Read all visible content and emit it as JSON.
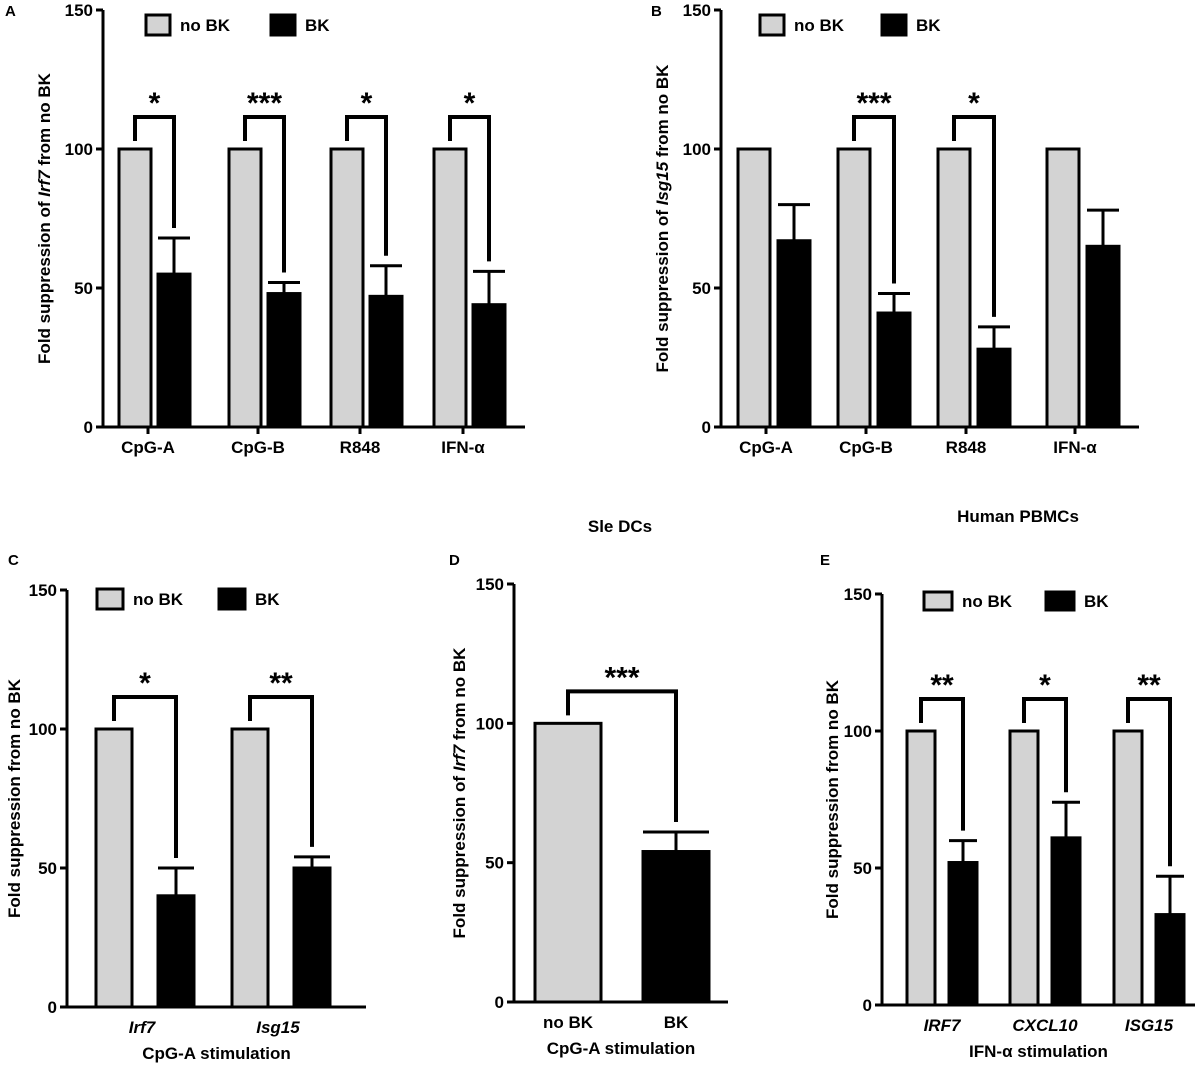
{
  "colors": {
    "nobk": "#d3d3d3",
    "bk": "#000000",
    "axis": "#000000"
  },
  "chart_data": [
    {
      "panel": "A",
      "type": "bar",
      "title": "",
      "ylabel_parts": [
        {
          "t": "Fold suppression of ",
          "i": false
        },
        {
          "t": "Irf7",
          "i": true
        },
        {
          "t": " from no BK",
          "i": false
        }
      ],
      "xlabel": "",
      "categories": [
        "CpG-A",
        "CpG-B",
        "R848",
        "IFN-α"
      ],
      "categories_italic": false,
      "series": [
        {
          "name": "no BK",
          "values": [
            100,
            100,
            100,
            100
          ],
          "errors": [
            0,
            0,
            0,
            0
          ]
        },
        {
          "name": "BK",
          "values": [
            55,
            48,
            47,
            44
          ],
          "errors": [
            13,
            4,
            11,
            12
          ]
        }
      ],
      "significance": [
        "*",
        "***",
        "*",
        "*"
      ],
      "ylim": [
        0,
        150
      ],
      "yticks": [
        0,
        50,
        100,
        150
      ],
      "legend": [
        "no BK",
        "BK"
      ]
    },
    {
      "panel": "B",
      "type": "bar",
      "title": "",
      "ylabel_parts": [
        {
          "t": "Fold suppression of ",
          "i": false
        },
        {
          "t": "Isg15",
          "i": true
        },
        {
          "t": " from no BK",
          "i": false
        }
      ],
      "xlabel": "",
      "categories": [
        "CpG-A",
        "CpG-B",
        "R848",
        "IFN-α"
      ],
      "categories_italic": false,
      "series": [
        {
          "name": "no BK",
          "values": [
            100,
            100,
            100,
            100
          ],
          "errors": [
            0,
            0,
            0,
            0
          ]
        },
        {
          "name": "BK",
          "values": [
            67,
            41,
            28,
            65
          ],
          "errors": [
            13,
            7,
            8,
            13
          ]
        }
      ],
      "significance": [
        "",
        "***",
        "*",
        ""
      ],
      "ylim": [
        0,
        150
      ],
      "yticks": [
        0,
        50,
        100,
        150
      ],
      "legend": [
        "no BK",
        "BK"
      ]
    },
    {
      "panel": "C",
      "type": "bar",
      "title": "",
      "ylabel_parts": [
        {
          "t": "Fold suppression from no BK",
          "i": false
        }
      ],
      "xlabel": "CpG-A stimulation",
      "categories": [
        "Irf7",
        "Isg15"
      ],
      "categories_italic": true,
      "series": [
        {
          "name": "no BK",
          "values": [
            100,
            100
          ],
          "errors": [
            0,
            0
          ]
        },
        {
          "name": "BK",
          "values": [
            40,
            50
          ],
          "errors": [
            10,
            4
          ]
        }
      ],
      "significance": [
        "*",
        "**"
      ],
      "ylim": [
        0,
        150
      ],
      "yticks": [
        0,
        50,
        100,
        150
      ],
      "legend": [
        "no BK",
        "BK"
      ]
    },
    {
      "panel": "D",
      "type": "bar",
      "title": "Sle DCs",
      "ylabel_parts": [
        {
          "t": "Fold suppression of ",
          "i": false
        },
        {
          "t": "Irf7",
          "i": true
        },
        {
          "t": " from no BK",
          "i": false
        }
      ],
      "xlabel": "CpG-A stimulation",
      "categories": [
        "no BK",
        "BK"
      ],
      "categories_italic": false,
      "series": [
        {
          "name": "",
          "values": [
            100,
            54
          ],
          "errors": [
            0,
            7
          ]
        }
      ],
      "significance": [
        "***"
      ],
      "ylim": [
        0,
        150
      ],
      "yticks": [
        0,
        50,
        100,
        150
      ],
      "legend": []
    },
    {
      "panel": "E",
      "type": "bar",
      "title": "Human PBMCs",
      "ylabel_parts": [
        {
          "t": "Fold suppression from no BK",
          "i": false
        }
      ],
      "xlabel": "IFN-α stimulation",
      "categories": [
        "IRF7",
        "CXCL10",
        "ISG15"
      ],
      "categories_italic": true,
      "series": [
        {
          "name": "no BK",
          "values": [
            100,
            100,
            100
          ],
          "errors": [
            0,
            0,
            0
          ]
        },
        {
          "name": "BK",
          "values": [
            52,
            61,
            33
          ],
          "errors": [
            8,
            13,
            14
          ]
        }
      ],
      "significance": [
        "**",
        "*",
        "**"
      ],
      "ylim": [
        0,
        150
      ],
      "yticks": [
        0,
        50,
        100,
        150
      ],
      "legend": [
        "no BK",
        "BK"
      ]
    }
  ]
}
